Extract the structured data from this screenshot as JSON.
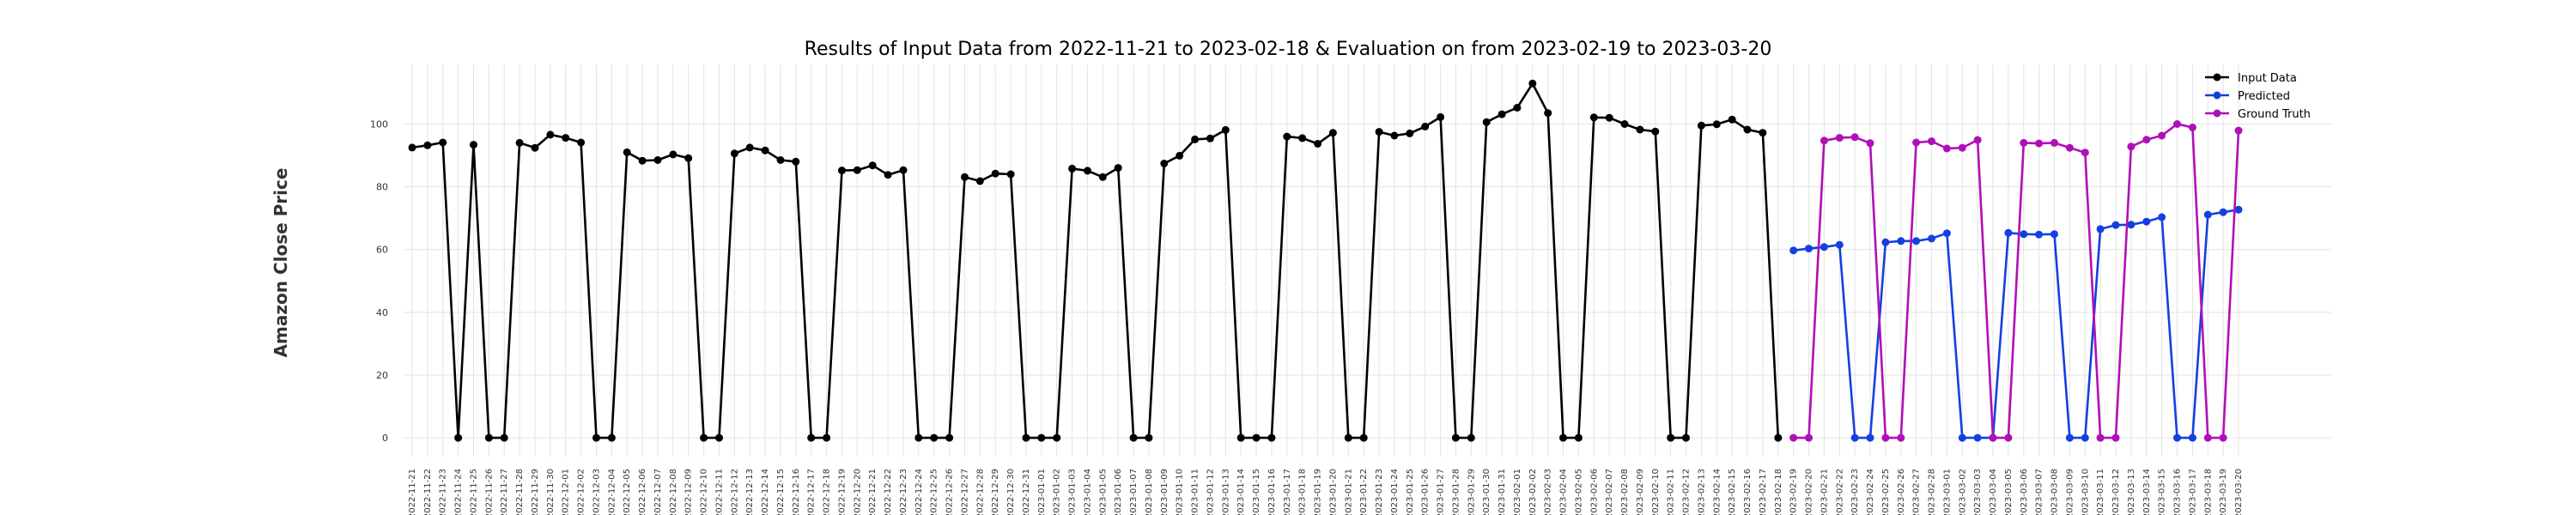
{
  "chart_data": {
    "type": "line",
    "title": "Results of Input Data from 2022-11-21 to 2023-02-18 & Evaluation on from 2023-02-19 to 2023-03-20",
    "ylabel": "Amazon Close Price",
    "xlabel": "",
    "ylim": [
      -6,
      119
    ],
    "yticks": [
      0,
      20,
      40,
      60,
      80,
      100
    ],
    "grid": true,
    "legend_position": "top-right",
    "input_data": {
      "name": "Input Data",
      "color": "#000000",
      "x": [
        "2022-11-21",
        "2022-11-22",
        "2022-11-23",
        "2022-11-24",
        "2022-11-25",
        "2022-11-26",
        "2022-11-27",
        "2022-11-28",
        "2022-11-29",
        "2022-11-30",
        "2022-12-01",
        "2022-12-02",
        "2022-12-03",
        "2022-12-04",
        "2022-12-05",
        "2022-12-06",
        "2022-12-07",
        "2022-12-08",
        "2022-12-09",
        "2022-12-10",
        "2022-12-11",
        "2022-12-12",
        "2022-12-13",
        "2022-12-14",
        "2022-12-15",
        "2022-12-16",
        "2022-12-17",
        "2022-12-18",
        "2022-12-19",
        "2022-12-20",
        "2022-12-21",
        "2022-12-22",
        "2022-12-23",
        "2022-12-24",
        "2022-12-25",
        "2022-12-26",
        "2022-12-27",
        "2022-12-28",
        "2022-12-29",
        "2022-12-30",
        "2022-12-31",
        "2023-01-01",
        "2023-01-02",
        "2023-01-03",
        "2023-01-04",
        "2023-01-05",
        "2023-01-06",
        "2023-01-07",
        "2023-01-08",
        "2023-01-09",
        "2023-01-10",
        "2023-01-11",
        "2023-01-12",
        "2023-01-13",
        "2023-01-14",
        "2023-01-15",
        "2023-01-16",
        "2023-01-17",
        "2023-01-18",
        "2023-01-19",
        "2023-01-20",
        "2023-01-21",
        "2023-01-22",
        "2023-01-23",
        "2023-01-24",
        "2023-01-25",
        "2023-01-26",
        "2023-01-27",
        "2023-01-28",
        "2023-01-29",
        "2023-01-30",
        "2023-01-31",
        "2023-02-01",
        "2023-02-02",
        "2023-02-03",
        "2023-02-04",
        "2023-02-05",
        "2023-02-06",
        "2023-02-07",
        "2023-02-08",
        "2023-02-09",
        "2023-02-10",
        "2023-02-11",
        "2023-02-12",
        "2023-02-13",
        "2023-02-14",
        "2023-02-15",
        "2023-02-16",
        "2023-02-17",
        "2023-02-18"
      ],
      "y": [
        92.5,
        93.2,
        94.1,
        0,
        93.4,
        0,
        0,
        94.0,
        92.4,
        96.6,
        95.6,
        94.1,
        0,
        0,
        91.0,
        88.3,
        88.5,
        90.3,
        89.1,
        0,
        0,
        90.6,
        92.5,
        91.6,
        88.5,
        88.0,
        0,
        0,
        85.2,
        85.3,
        86.8,
        83.8,
        85.3,
        0,
        0,
        0,
        83.1,
        81.8,
        84.2,
        84.0,
        0,
        0,
        0,
        85.8,
        85.1,
        83.1,
        86.0,
        0,
        0,
        87.4,
        89.9,
        95.1,
        95.4,
        98.1,
        0,
        0,
        0,
        96.0,
        95.5,
        93.7,
        97.2,
        0,
        0,
        97.5,
        96.3,
        97.0,
        99.2,
        102.2,
        0,
        0,
        100.6,
        103.1,
        105.2,
        112.9,
        103.5,
        0,
        0,
        102.1,
        102.0,
        100.0,
        98.2,
        97.6,
        0,
        0,
        99.5,
        99.9,
        101.4,
        98.2,
        97.2,
        0
      ]
    },
    "predicted": {
      "name": "Predicted",
      "color": "#1440e0",
      "x": [
        "2023-02-19",
        "2023-02-20",
        "2023-02-21",
        "2023-02-22",
        "2023-02-23",
        "2023-02-24",
        "2023-02-25",
        "2023-02-26",
        "2023-02-27",
        "2023-02-28",
        "2023-03-01",
        "2023-03-02",
        "2023-03-03",
        "2023-03-04",
        "2023-03-05",
        "2023-03-06",
        "2023-03-07",
        "2023-03-08",
        "2023-03-09",
        "2023-03-10",
        "2023-03-11",
        "2023-03-12",
        "2023-03-13",
        "2023-03-14",
        "2023-03-15",
        "2023-03-16",
        "2023-03-17",
        "2023-03-18",
        "2023-03-19",
        "2023-03-20"
      ],
      "y": [
        59.7,
        60.3,
        60.8,
        61.5,
        0,
        0,
        62.3,
        62.7,
        62.7,
        63.5,
        65.2,
        0,
        0,
        0,
        65.3,
        64.9,
        64.8,
        64.9,
        0,
        0,
        66.5,
        67.8,
        67.9,
        68.9,
        70.3,
        0,
        0,
        71.1,
        71.9,
        72.7
      ]
    },
    "ground_truth": {
      "name": "Ground Truth",
      "color": "#b00fb8",
      "x": [
        "2023-02-19",
        "2023-02-20",
        "2023-02-21",
        "2023-02-22",
        "2023-02-23",
        "2023-02-24",
        "2023-02-25",
        "2023-02-26",
        "2023-02-27",
        "2023-02-28",
        "2023-03-01",
        "2023-03-02",
        "2023-03-03",
        "2023-03-04",
        "2023-03-05",
        "2023-03-06",
        "2023-03-07",
        "2023-03-08",
        "2023-03-09",
        "2023-03-10",
        "2023-03-11",
        "2023-03-12",
        "2023-03-13",
        "2023-03-14",
        "2023-03-15",
        "2023-03-16",
        "2023-03-17",
        "2023-03-18",
        "2023-03-19",
        "2023-03-20"
      ],
      "y": [
        0,
        0,
        94.7,
        95.6,
        95.8,
        93.9,
        0,
        0,
        94.1,
        94.5,
        92.2,
        92.4,
        94.9,
        0,
        0,
        94.0,
        93.8,
        94.0,
        92.4,
        90.9,
        0,
        0,
        92.8,
        95.0,
        96.3,
        100.0,
        98.9,
        0,
        0,
        97.9
      ]
    },
    "xtick_labels": [
      "2022-11-21",
      "2022-11-22",
      "2022-11-23",
      "2022-11-24",
      "2022-11-25",
      "2022-11-26",
      "2022-11-27",
      "2022-11-28",
      "2022-11-29",
      "2022-11-30",
      "2022-12-01",
      "2022-12-02",
      "2022-12-03",
      "2022-12-04",
      "2022-12-05",
      "2022-12-06",
      "2022-12-07",
      "2022-12-08",
      "2022-12-09",
      "2022-12-10",
      "2022-12-11",
      "2022-12-12",
      "2022-12-13",
      "2022-12-14",
      "2022-12-15",
      "2022-12-16",
      "2022-12-17",
      "2022-12-18",
      "2022-12-19",
      "2022-12-20",
      "2022-12-21",
      "2022-12-22",
      "2022-12-23",
      "2022-12-24",
      "2022-12-25",
      "2022-12-26",
      "2022-12-27",
      "2022-12-28",
      "2022-12-29",
      "2022-12-30",
      "2022-12-31",
      "2023-01-01",
      "2023-01-02",
      "2023-01-03",
      "2023-01-04",
      "2023-01-05",
      "2023-01-06",
      "2023-01-07",
      "2023-01-08",
      "2023-01-09",
      "2023-01-10",
      "2023-01-11",
      "2023-01-12",
      "2023-01-13",
      "2023-01-14",
      "2023-01-15",
      "2023-01-16",
      "2023-01-17",
      "2023-01-18",
      "2023-01-19",
      "2023-01-20",
      "2023-01-21",
      "2023-01-22",
      "2023-01-23",
      "2023-01-24",
      "2023-01-25",
      "2023-01-26",
      "2023-01-27",
      "2023-01-28",
      "2023-01-29",
      "2023-01-30",
      "2023-01-31",
      "2023-02-01",
      "2023-02-02",
      "2023-02-03",
      "2023-02-04",
      "2023-02-05",
      "2023-02-06",
      "2023-02-07",
      "2023-02-08",
      "2023-02-09",
      "2023-02-10",
      "2023-02-11",
      "2023-02-12",
      "2023-02-13",
      "2023-02-14",
      "2023-02-15",
      "2023-02-16",
      "2023-02-17",
      "2023-02-18",
      "2023-02-19",
      "2023-02-20",
      "2023-02-21",
      "2023-02-22",
      "2023-02-23",
      "2023-02-24",
      "2023-02-25",
      "2023-02-26",
      "2023-02-27",
      "2023-02-28",
      "2023-03-01",
      "2023-03-02",
      "2023-03-03",
      "2023-03-04",
      "2023-03-05",
      "2023-03-06",
      "2023-03-07",
      "2023-03-08",
      "2023-03-09",
      "2023-03-10",
      "2023-03-11",
      "2023-03-12",
      "2023-03-13",
      "2023-03-14",
      "2023-03-15",
      "2023-03-16",
      "2023-03-17",
      "2023-03-18",
      "2023-03-19",
      "2023-03-20"
    ]
  }
}
